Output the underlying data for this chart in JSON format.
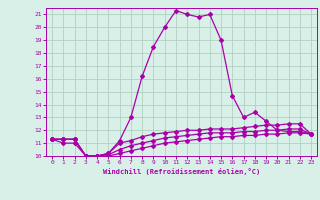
{
  "xlabel": "Windchill (Refroidissement éolien,°C)",
  "xlim": [
    -0.5,
    23.5
  ],
  "ylim": [
    10,
    21.5
  ],
  "yticks": [
    10,
    11,
    12,
    13,
    14,
    15,
    16,
    17,
    18,
    19,
    20,
    21
  ],
  "xticks": [
    0,
    1,
    2,
    3,
    4,
    5,
    6,
    7,
    8,
    9,
    10,
    11,
    12,
    13,
    14,
    15,
    16,
    17,
    18,
    19,
    20,
    21,
    22,
    23
  ],
  "bg_color": "#d8f0e8",
  "grid_color": "#aaccbb",
  "line_color": "#aa00aa",
  "line1_y": [
    11.3,
    11.3,
    11.3,
    10.0,
    10.0,
    10.2,
    11.2,
    13.0,
    16.2,
    18.5,
    20.0,
    21.3,
    21.0,
    20.8,
    21.0,
    19.0,
    14.7,
    13.0,
    13.4,
    12.7,
    12.0,
    11.9,
    11.9,
    11.7
  ],
  "line2_y": [
    11.3,
    11.3,
    11.3,
    10.0,
    10.0,
    10.2,
    11.0,
    11.2,
    11.5,
    11.7,
    11.8,
    11.9,
    12.0,
    12.0,
    12.1,
    12.1,
    12.1,
    12.2,
    12.3,
    12.4,
    12.4,
    12.5,
    12.5,
    11.7
  ],
  "line3_y": [
    11.3,
    11.0,
    11.0,
    10.0,
    10.0,
    10.1,
    10.5,
    10.8,
    11.0,
    11.2,
    11.4,
    11.5,
    11.6,
    11.7,
    11.8,
    11.8,
    11.8,
    11.9,
    11.9,
    12.0,
    12.0,
    12.1,
    12.1,
    11.7
  ],
  "line4_y": [
    11.3,
    11.3,
    11.3,
    10.0,
    10.0,
    10.0,
    10.2,
    10.4,
    10.6,
    10.8,
    11.0,
    11.1,
    11.2,
    11.3,
    11.4,
    11.5,
    11.5,
    11.6,
    11.6,
    11.7,
    11.7,
    11.8,
    11.8,
    11.7
  ]
}
